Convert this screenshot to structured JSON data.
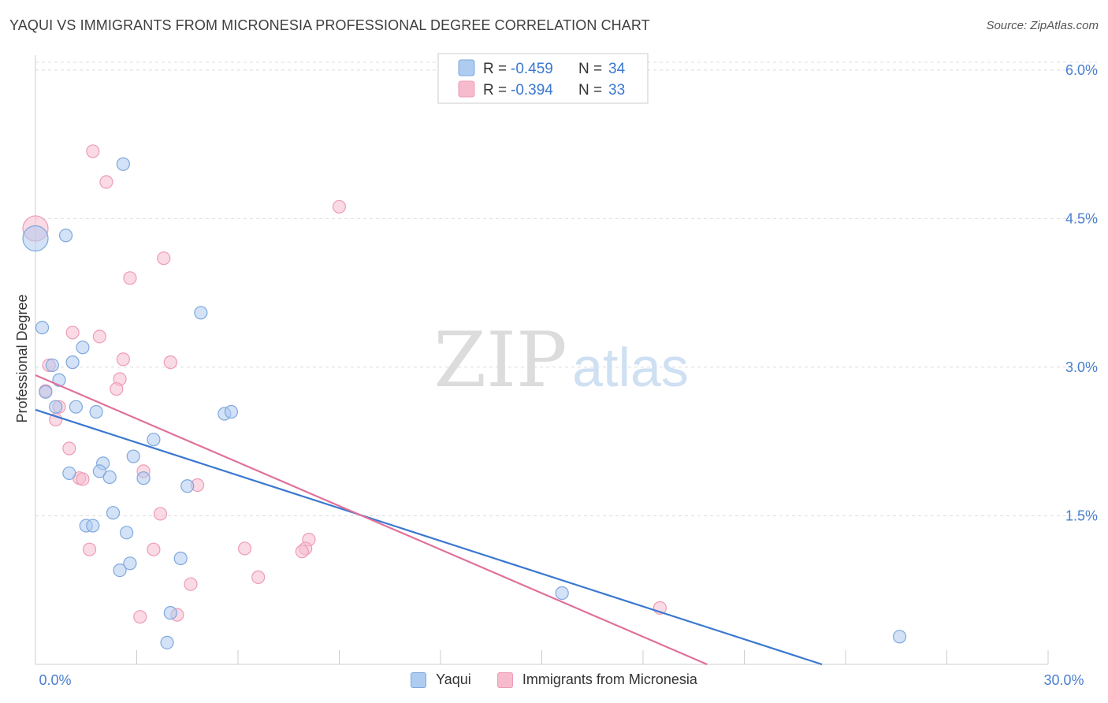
{
  "header": {
    "title": "YAQUI VS IMMIGRANTS FROM MICRONESIA PROFESSIONAL DEGREE CORRELATION CHART",
    "source": "Source: ZipAtlas.com"
  },
  "watermark": {
    "zip": "ZIP",
    "atlas": "atlas"
  },
  "colors": {
    "blue_fill": "#aecbf0",
    "blue_stroke": "#7fa8dd",
    "blue_line": "#3a78d0",
    "pink_fill": "#f6bccd",
    "pink_stroke": "#ee9cb6",
    "pink_line": "#e0709a",
    "axis_text": "#4a7fcf",
    "grid": "#dddddd"
  },
  "stats_legend": [
    {
      "r_label": "R = ",
      "r_value": "-0.459",
      "n_label": "N = ",
      "n_value": "34"
    },
    {
      "r_label": "R = ",
      "r_value": "-0.394",
      "n_label": "N = ",
      "n_value": "33"
    }
  ],
  "chart_data": {
    "type": "scatter",
    "ylabel": "Professional Degree",
    "xlabel": "",
    "xlim": [
      0,
      30
    ],
    "ylim": [
      0,
      6.15
    ],
    "x_tick_labels": [
      "0.0%",
      "30.0%"
    ],
    "y_ticks": [
      {
        "value": 1.5,
        "label": "1.5%"
      },
      {
        "value": 3.0,
        "label": "3.0%"
      },
      {
        "value": 4.5,
        "label": "4.5%"
      },
      {
        "value": 6.0,
        "label": "6.0%"
      }
    ],
    "grid": "horizontal dashed",
    "legend_position": "bottom",
    "series": [
      {
        "name": "Yaqui",
        "color": "blue",
        "points": [
          [
            0.0,
            4.3
          ],
          [
            0.9,
            4.33
          ],
          [
            2.6,
            5.05
          ],
          [
            4.9,
            3.55
          ],
          [
            0.2,
            3.4
          ],
          [
            1.4,
            3.2
          ],
          [
            1.1,
            3.05
          ],
          [
            0.5,
            3.02
          ],
          [
            0.7,
            2.87
          ],
          [
            0.3,
            2.75
          ],
          [
            0.6,
            2.6
          ],
          [
            1.2,
            2.6
          ],
          [
            1.8,
            2.55
          ],
          [
            5.6,
            2.53
          ],
          [
            5.8,
            2.55
          ],
          [
            3.5,
            2.27
          ],
          [
            2.9,
            2.1
          ],
          [
            2.0,
            2.03
          ],
          [
            1.0,
            1.93
          ],
          [
            1.9,
            1.95
          ],
          [
            2.2,
            1.89
          ],
          [
            3.2,
            1.88
          ],
          [
            4.5,
            1.8
          ],
          [
            2.3,
            1.53
          ],
          [
            1.5,
            1.4
          ],
          [
            1.7,
            1.4
          ],
          [
            2.7,
            1.33
          ],
          [
            4.3,
            1.07
          ],
          [
            2.8,
            1.02
          ],
          [
            2.5,
            0.95
          ],
          [
            4.0,
            0.52
          ],
          [
            3.9,
            0.22
          ],
          [
            15.6,
            0.72
          ],
          [
            25.6,
            0.28
          ]
        ],
        "trend": [
          [
            0,
            2.57
          ],
          [
            23.3,
            0
          ]
        ]
      },
      {
        "name": "Immigrants from Micronesia",
        "color": "pink",
        "points": [
          [
            0.0,
            4.4
          ],
          [
            1.7,
            5.18
          ],
          [
            2.1,
            4.87
          ],
          [
            9.0,
            4.62
          ],
          [
            3.8,
            4.1
          ],
          [
            2.8,
            3.9
          ],
          [
            1.1,
            3.35
          ],
          [
            1.9,
            3.31
          ],
          [
            2.6,
            3.08
          ],
          [
            4.0,
            3.05
          ],
          [
            0.4,
            3.02
          ],
          [
            2.5,
            2.88
          ],
          [
            2.4,
            2.78
          ],
          [
            0.3,
            2.76
          ],
          [
            0.7,
            2.6
          ],
          [
            0.6,
            2.47
          ],
          [
            1.0,
            2.18
          ],
          [
            3.2,
            1.95
          ],
          [
            1.3,
            1.88
          ],
          [
            1.4,
            1.87
          ],
          [
            4.8,
            1.81
          ],
          [
            3.7,
            1.52
          ],
          [
            8.1,
            1.26
          ],
          [
            6.2,
            1.17
          ],
          [
            8.0,
            1.17
          ],
          [
            7.9,
            1.14
          ],
          [
            1.6,
            1.16
          ],
          [
            3.5,
            1.16
          ],
          [
            6.6,
            0.88
          ],
          [
            4.6,
            0.81
          ],
          [
            3.1,
            0.48
          ],
          [
            4.2,
            0.5
          ],
          [
            18.5,
            0.57
          ]
        ],
        "trend": [
          [
            0,
            2.92
          ],
          [
            19.9,
            0
          ]
        ]
      }
    ]
  },
  "bottom_legend": [
    {
      "label": "Yaqui",
      "color": "blue"
    },
    {
      "label": "Immigrants from Micronesia",
      "color": "pink"
    }
  ]
}
